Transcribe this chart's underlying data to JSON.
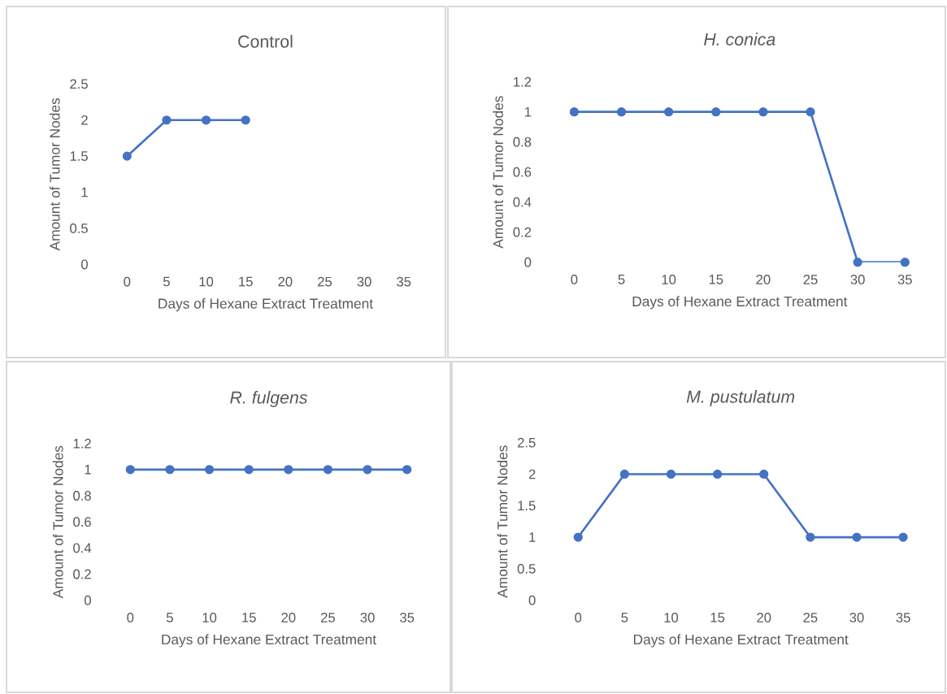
{
  "chart_data": [
    {
      "type": "line",
      "title": "Control",
      "xlabel": "Days of Hexane Extract Treatment",
      "ylabel": "Amount of Tumor Nodes",
      "categories": [
        "0",
        "5",
        "10",
        "15",
        "20",
        "25",
        "30",
        "35"
      ],
      "series": [
        {
          "color": "#4472c4",
          "values": [
            1.5,
            2,
            2,
            2,
            null,
            null,
            null,
            null
          ]
        }
      ],
      "ylim": [
        0,
        2.5
      ],
      "yticks": [
        0,
        0.5,
        1,
        1.5,
        2,
        2.5
      ],
      "marker": "circle",
      "line_style": "solid",
      "grid": false
    },
    {
      "type": "line",
      "title": "H. conica",
      "xlabel": "Days of Hexane Extract Treatment",
      "ylabel": "Amount of Tumor Nodes",
      "categories": [
        "0",
        "5",
        "10",
        "15",
        "20",
        "25",
        "30",
        "35"
      ],
      "series": [
        {
          "color": "#4472c4",
          "values": [
            1,
            1,
            1,
            1,
            1,
            1,
            0,
            0
          ]
        }
      ],
      "ylim": [
        0,
        1.2
      ],
      "yticks": [
        0,
        0.2,
        0.4,
        0.6,
        0.8,
        1,
        1.2
      ],
      "marker": "circle",
      "line_style": "solid",
      "grid": false
    },
    {
      "type": "line",
      "title": "R. fulgens",
      "xlabel": "Days of Hexane Extract Treatment",
      "ylabel": "Amount of Tumor Nodes",
      "categories": [
        "0",
        "5",
        "10",
        "15",
        "20",
        "25",
        "30",
        "35"
      ],
      "series": [
        {
          "color": "#4472c4",
          "values": [
            1,
            1,
            1,
            1,
            1,
            1,
            1,
            1
          ]
        }
      ],
      "ylim": [
        0,
        1.2
      ],
      "yticks": [
        0,
        0.2,
        0.4,
        0.6,
        0.8,
        1,
        1.2
      ],
      "marker": "circle",
      "line_style": "solid",
      "grid": false
    },
    {
      "type": "line",
      "title": "M. pustulatum",
      "xlabel": "Days of Hexane Extract Treatment",
      "ylabel": "Amount of Tumor Nodes",
      "categories": [
        "0",
        "5",
        "10",
        "15",
        "20",
        "25",
        "30",
        "35"
      ],
      "series": [
        {
          "color": "#4472c4",
          "values": [
            1,
            2,
            2,
            2,
            2,
            1,
            1,
            1
          ]
        }
      ],
      "ylim": [
        0,
        2.5
      ],
      "yticks": [
        0,
        0.5,
        1,
        1.5,
        2,
        2.5
      ],
      "marker": "circle",
      "line_style": "solid",
      "grid": false
    }
  ]
}
